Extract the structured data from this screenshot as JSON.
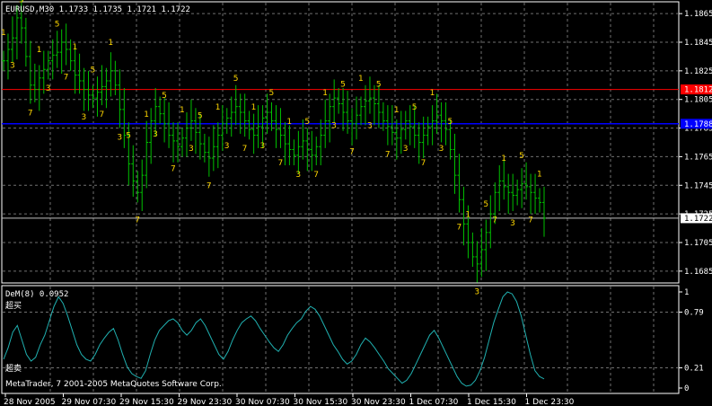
{
  "main_panel": {
    "header": "EURUSD,M30  1.1733 1.1735 1.1721 1.1722",
    "price_scale": [
      "1.1865",
      "1.1845",
      "1.1825",
      "1.1805",
      "1.1785",
      "1.1765",
      "1.1745",
      "1.1725",
      "1.1705",
      "1.1685"
    ],
    "current_price_label": "1.1722",
    "red_line_label": "1.1812",
    "blue_line_label": "1.1788",
    "colors": {
      "bars": "#00c000",
      "grid": "#707070",
      "red_line": "#ff0000",
      "blue_line": "#0000ff",
      "digits": "#ffd700"
    }
  },
  "indicator_panel": {
    "header": "DeM(8) 0.0952",
    "overbought_label": "超买",
    "oversold_label": "超卖",
    "scale": [
      "1",
      "0.79",
      "0.21",
      "0"
    ],
    "copyright": "MetaTrader, 7 2001-2005 MetaQuotes Software Corp.",
    "line_color": "#20b0b0"
  },
  "time_axis": [
    "28 Nov 2005",
    "29 Nov 07:30",
    "29 Nov 15:30",
    "29 Nov 23:30",
    "30 Nov 07:30",
    "30 Nov 15:30",
    "30 Nov 23:30",
    "1 Dec 07:30",
    "1 Dec 15:30",
    "1 Dec 23:30"
  ],
  "chart_data": {
    "type": "bar",
    "symbol": "EURUSD",
    "timeframe": "M30",
    "ylim": [
      1.1678,
      1.1872
    ],
    "last": {
      "open": 1.1733,
      "high": 1.1735,
      "low": 1.1721,
      "close": 1.1722
    },
    "price_series": [
      1.1832,
      1.184,
      1.1848,
      1.1862,
      1.1855,
      1.1835,
      1.1815,
      1.1812,
      1.182,
      1.1826,
      1.1832,
      1.1836,
      1.1838,
      1.1845,
      1.184,
      1.1832,
      1.1822,
      1.1818,
      1.1812,
      1.1808,
      1.1806,
      1.181,
      1.1814,
      1.1818,
      1.1825,
      1.1815,
      1.1798,
      1.178,
      1.176,
      1.1748,
      1.174,
      1.1752,
      1.1775,
      1.179,
      1.18,
      1.1795,
      1.1788,
      1.178,
      1.1776,
      1.1772,
      1.1778,
      1.1785,
      1.179,
      1.1782,
      1.1774,
      1.1768,
      1.1764,
      1.1772,
      1.178,
      1.1788,
      1.1792,
      1.1796,
      1.18,
      1.1796,
      1.179,
      1.1784,
      1.178,
      1.1786,
      1.1792,
      1.1796,
      1.179,
      1.1784,
      1.178,
      1.1774,
      1.177,
      1.1766,
      1.1772,
      1.1776,
      1.177,
      1.1766,
      1.1772,
      1.178,
      1.179,
      1.18,
      1.1806,
      1.1802,
      1.1796,
      1.179,
      1.1788,
      1.1794,
      1.18,
      1.1804,
      1.1806,
      1.1802,
      1.1796,
      1.179,
      1.1786,
      1.1782,
      1.1778,
      1.1784,
      1.179,
      1.1786,
      1.178,
      1.1775,
      1.178,
      1.1786,
      1.179,
      1.1794,
      1.179,
      1.1784,
      1.177,
      1.1752,
      1.1735,
      1.1718,
      1.1705,
      1.1695,
      1.169,
      1.17,
      1.1712,
      1.1725,
      1.174,
      1.1748,
      1.1744,
      1.174,
      1.1738,
      1.1742,
      1.1746,
      1.1744,
      1.174,
      1.1736,
      1.1733,
      1.1722
    ],
    "demarker": [
      0.3,
      0.42,
      0.58,
      0.65,
      0.5,
      0.35,
      0.28,
      0.32,
      0.45,
      0.55,
      0.7,
      0.85,
      0.95,
      0.88,
      0.75,
      0.6,
      0.45,
      0.35,
      0.3,
      0.28,
      0.35,
      0.45,
      0.52,
      0.58,
      0.62,
      0.5,
      0.35,
      0.22,
      0.15,
      0.12,
      0.1,
      0.18,
      0.35,
      0.5,
      0.6,
      0.65,
      0.7,
      0.72,
      0.68,
      0.6,
      0.55,
      0.6,
      0.68,
      0.72,
      0.65,
      0.55,
      0.45,
      0.35,
      0.3,
      0.38,
      0.5,
      0.6,
      0.68,
      0.72,
      0.75,
      0.7,
      0.62,
      0.55,
      0.48,
      0.42,
      0.38,
      0.45,
      0.55,
      0.62,
      0.68,
      0.72,
      0.8,
      0.85,
      0.82,
      0.75,
      0.65,
      0.55,
      0.45,
      0.38,
      0.3,
      0.25,
      0.28,
      0.35,
      0.45,
      0.52,
      0.48,
      0.42,
      0.35,
      0.28,
      0.2,
      0.15,
      0.1,
      0.05,
      0.08,
      0.15,
      0.25,
      0.35,
      0.45,
      0.55,
      0.6,
      0.52,
      0.42,
      0.32,
      0.22,
      0.12,
      0.05,
      0.02,
      0.03,
      0.08,
      0.18,
      0.32,
      0.5,
      0.68,
      0.82,
      0.95,
      1.0,
      0.98,
      0.9,
      0.75,
      0.55,
      0.35,
      0.18,
      0.12,
      0.0952
    ]
  }
}
